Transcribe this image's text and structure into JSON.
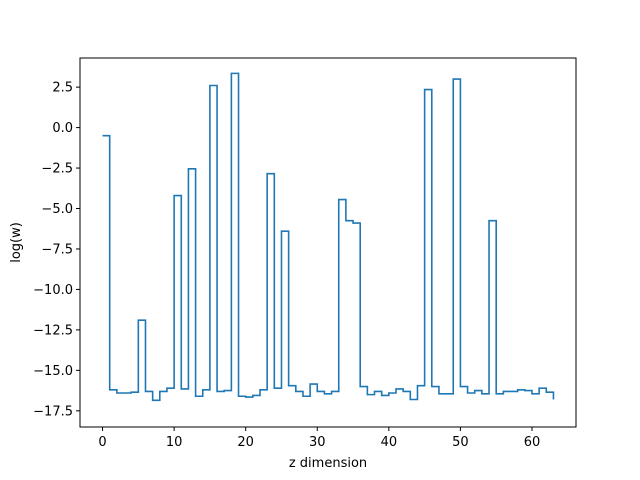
{
  "chart_data": {
    "type": "line",
    "drawstyle": "steps-post",
    "title": "",
    "xlabel": "z dimension",
    "ylabel": "log(w)",
    "xlim": [
      -3.15,
      66.15
    ],
    "ylim": [
      -18.5,
      4.3
    ],
    "xticks": [
      0,
      10,
      20,
      30,
      40,
      50,
      60
    ],
    "xtick_labels": [
      "0",
      "10",
      "20",
      "30",
      "40",
      "50",
      "60"
    ],
    "yticks": [
      2.5,
      0.0,
      -2.5,
      -5.0,
      -7.5,
      -10.0,
      -12.5,
      -15.0,
      -17.5
    ],
    "ytick_labels": [
      "2.5",
      "0.0",
      "−2.5",
      "−5.0",
      "−7.5",
      "−10.0",
      "−12.5",
      "−15.0",
      "−17.5"
    ],
    "grid": false,
    "legend": "none",
    "series": [
      {
        "color": "#1f77b4",
        "x": [
          0,
          1,
          2,
          3,
          4,
          5,
          6,
          7,
          8,
          9,
          10,
          11,
          12,
          13,
          14,
          15,
          16,
          17,
          18,
          19,
          20,
          21,
          22,
          23,
          24,
          25,
          26,
          27,
          28,
          29,
          30,
          31,
          32,
          33,
          34,
          35,
          36,
          37,
          38,
          39,
          40,
          41,
          42,
          43,
          44,
          45,
          46,
          47,
          48,
          49,
          50,
          51,
          52,
          53,
          54,
          55,
          56,
          57,
          58,
          59,
          60,
          61,
          62,
          63
        ],
        "y": [
          -0.5,
          -16.2,
          -16.4,
          -16.4,
          -16.35,
          -11.9,
          -16.3,
          -16.85,
          -16.3,
          -16.1,
          -4.2,
          -16.15,
          -2.55,
          -16.6,
          -16.2,
          2.6,
          -16.3,
          -16.25,
          3.35,
          -16.6,
          -16.65,
          -16.55,
          -16.2,
          -2.85,
          -16.1,
          -6.4,
          -15.95,
          -16.3,
          -16.6,
          -15.85,
          -16.3,
          -16.45,
          -16.3,
          -4.45,
          -5.75,
          -5.9,
          -16.0,
          -16.5,
          -16.3,
          -16.55,
          -16.4,
          -16.15,
          -16.3,
          -16.8,
          -15.95,
          2.35,
          -16.0,
          -16.45,
          -16.45,
          3.0,
          -16.0,
          -16.4,
          -16.25,
          -16.45,
          -5.75,
          -16.45,
          -16.3,
          -16.3,
          -16.2,
          -16.25,
          -16.45,
          -16.1,
          -16.35,
          -16.8
        ]
      }
    ]
  }
}
